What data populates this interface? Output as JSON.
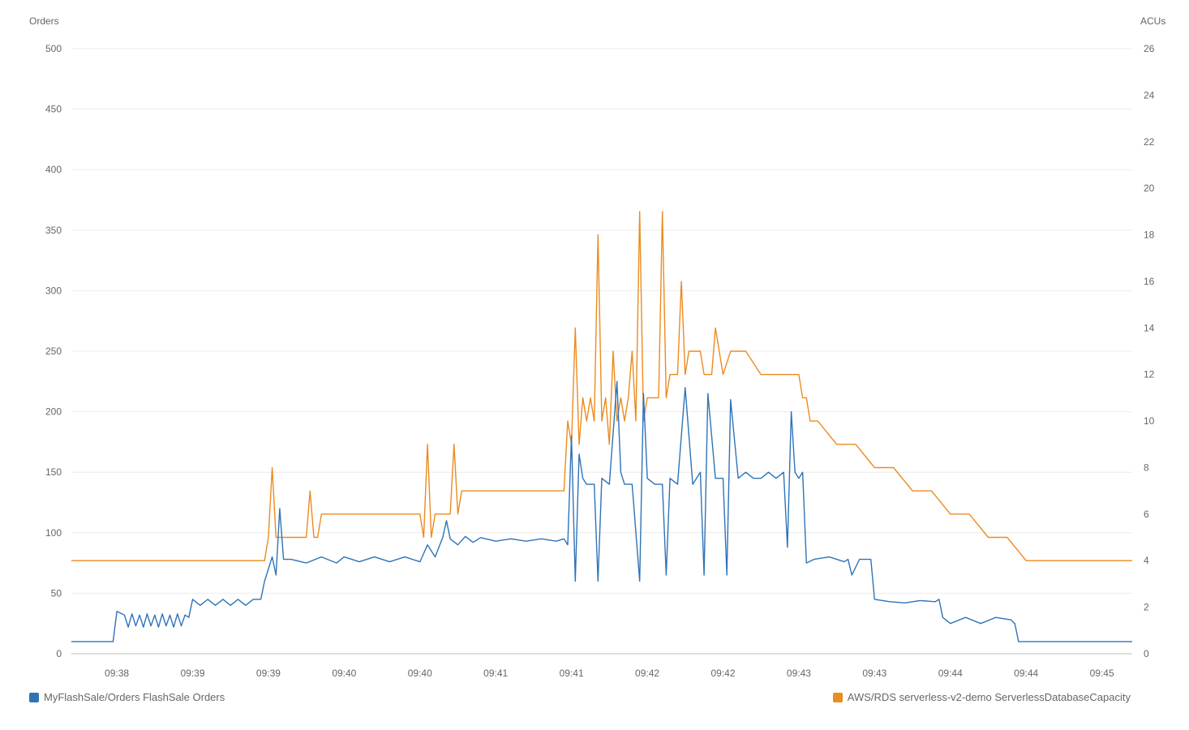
{
  "chart_data": {
    "type": "line",
    "left_axis": {
      "title": "Orders",
      "range": [
        0,
        500
      ],
      "ticks": [
        0,
        50,
        100,
        150,
        200,
        250,
        300,
        350,
        400,
        450,
        500
      ]
    },
    "right_axis": {
      "title": "ACUs",
      "range": [
        0,
        26
      ],
      "ticks": [
        0,
        2,
        4,
        6,
        8,
        10,
        12,
        14,
        16,
        18,
        20,
        22,
        24,
        26
      ]
    },
    "x_tick_labels": [
      "09:38",
      "09:39",
      "09:39",
      "09:40",
      "09:40",
      "09:41",
      "09:41",
      "09:42",
      "09:42",
      "09:43",
      "09:43",
      "09:44",
      "09:44",
      "09:45"
    ],
    "x_range": [
      -0.6,
      13.4
    ],
    "grid": true,
    "legend_position": "bottom",
    "series": [
      {
        "name": "MyFlashSale/Orders FlashSale Orders",
        "axis": "left",
        "color": "#2e73b8",
        "x": [
          -0.6,
          -0.05,
          0,
          0.1,
          0.15,
          0.2,
          0.25,
          0.3,
          0.35,
          0.4,
          0.45,
          0.5,
          0.55,
          0.6,
          0.65,
          0.7,
          0.75,
          0.8,
          0.85,
          0.9,
          0.95,
          1.0,
          1.1,
          1.2,
          1.3,
          1.4,
          1.5,
          1.6,
          1.7,
          1.8,
          1.9,
          1.95,
          2.05,
          2.1,
          2.15,
          2.2,
          2.3,
          2.5,
          2.7,
          2.9,
          3.0,
          3.2,
          3.4,
          3.6,
          3.8,
          4.0,
          4.1,
          4.2,
          4.3,
          4.35,
          4.4,
          4.5,
          4.6,
          4.7,
          4.8,
          5.0,
          5.2,
          5.4,
          5.6,
          5.8,
          5.9,
          5.95,
          6.0,
          6.05,
          6.1,
          6.15,
          6.2,
          6.3,
          6.35,
          6.4,
          6.5,
          6.6,
          6.65,
          6.7,
          6.8,
          6.9,
          6.95,
          7.0,
          7.1,
          7.2,
          7.25,
          7.3,
          7.4,
          7.5,
          7.6,
          7.7,
          7.75,
          7.8,
          7.9,
          8.0,
          8.05,
          8.1,
          8.2,
          8.3,
          8.4,
          8.5,
          8.6,
          8.7,
          8.8,
          8.85,
          8.9,
          8.95,
          9.0,
          9.05,
          9.1,
          9.2,
          9.4,
          9.6,
          9.65,
          9.7,
          9.8,
          9.9,
          9.95,
          10.0,
          10.2,
          10.4,
          10.6,
          10.8,
          10.85,
          10.9,
          11.0,
          11.2,
          11.4,
          11.6,
          11.8,
          11.85,
          11.9,
          12.0,
          12.5,
          13.0,
          13.4
        ],
        "y": [
          10,
          10,
          35,
          32,
          22,
          33,
          23,
          32,
          22,
          33,
          23,
          32,
          22,
          33,
          23,
          32,
          22,
          33,
          23,
          32,
          30,
          45,
          40,
          45,
          40,
          45,
          40,
          45,
          40,
          45,
          45,
          60,
          80,
          65,
          120,
          78,
          78,
          75,
          80,
          75,
          80,
          76,
          80,
          76,
          80,
          76,
          90,
          80,
          96,
          110,
          95,
          90,
          97,
          92,
          96,
          93,
          95,
          93,
          95,
          93,
          95,
          90,
          180,
          60,
          165,
          145,
          140,
          140,
          60,
          145,
          140,
          225,
          150,
          140,
          140,
          60,
          215,
          145,
          140,
          140,
          65,
          145,
          140,
          220,
          140,
          150,
          65,
          215,
          145,
          145,
          65,
          210,
          145,
          150,
          145,
          145,
          150,
          145,
          150,
          88,
          200,
          150,
          145,
          150,
          75,
          78,
          80,
          76,
          78,
          65,
          78,
          78,
          78,
          45,
          43,
          42,
          44,
          43,
          45,
          30,
          25,
          30,
          25,
          30,
          28,
          25,
          10,
          10,
          10,
          10,
          10
        ]
      },
      {
        "name": "AWS/RDS serverless-v2-demo ServerlessDatabaseCapacity",
        "axis": "right",
        "color": "#ec8b1f",
        "x": [
          -0.6,
          1.95,
          2.0,
          2.05,
          2.1,
          2.15,
          2.2,
          2.25,
          2.5,
          2.55,
          2.6,
          2.65,
          2.7,
          2.75,
          3.0,
          4.0,
          4.05,
          4.1,
          4.15,
          4.2,
          4.25,
          4.4,
          4.45,
          4.5,
          4.55,
          4.6,
          4.65,
          5.0,
          5.5,
          5.9,
          5.95,
          6.0,
          6.05,
          6.1,
          6.15,
          6.2,
          6.25,
          6.3,
          6.35,
          6.4,
          6.45,
          6.5,
          6.55,
          6.6,
          6.65,
          6.7,
          6.75,
          6.8,
          6.85,
          6.9,
          6.95,
          7.0,
          7.05,
          7.1,
          7.15,
          7.2,
          7.25,
          7.3,
          7.35,
          7.4,
          7.45,
          7.5,
          7.55,
          7.6,
          7.65,
          7.7,
          7.75,
          7.8,
          7.85,
          7.9,
          8.0,
          8.1,
          8.2,
          8.3,
          8.5,
          8.8,
          9.0,
          9.05,
          9.1,
          9.15,
          9.2,
          9.25,
          9.5,
          9.75,
          10.0,
          10.25,
          10.5,
          10.75,
          11.0,
          11.25,
          11.5,
          11.75,
          12.0,
          12.25,
          12.5,
          12.75,
          13.0,
          13.25,
          13.4
        ],
        "y": [
          4,
          4,
          5,
          8,
          5,
          5,
          5,
          5,
          5,
          7,
          5,
          5,
          6,
          6,
          6,
          6,
          5,
          9,
          5,
          6,
          6,
          6,
          9,
          6,
          7,
          7,
          7,
          7,
          7,
          7,
          10,
          9,
          14,
          9,
          11,
          10,
          11,
          10,
          18,
          10,
          11,
          9,
          13,
          10,
          11,
          10,
          11,
          13,
          10,
          19,
          10,
          11,
          11,
          11,
          11,
          19,
          11,
          12,
          12,
          12,
          16,
          12,
          13,
          13,
          13,
          13,
          12,
          12,
          12,
          14,
          12,
          13,
          13,
          13,
          12,
          12,
          12,
          11,
          11,
          10,
          10,
          10,
          9,
          9,
          8,
          8,
          7,
          7,
          6,
          6,
          5,
          5,
          4,
          4,
          4,
          4,
          4,
          4,
          4
        ]
      }
    ]
  }
}
